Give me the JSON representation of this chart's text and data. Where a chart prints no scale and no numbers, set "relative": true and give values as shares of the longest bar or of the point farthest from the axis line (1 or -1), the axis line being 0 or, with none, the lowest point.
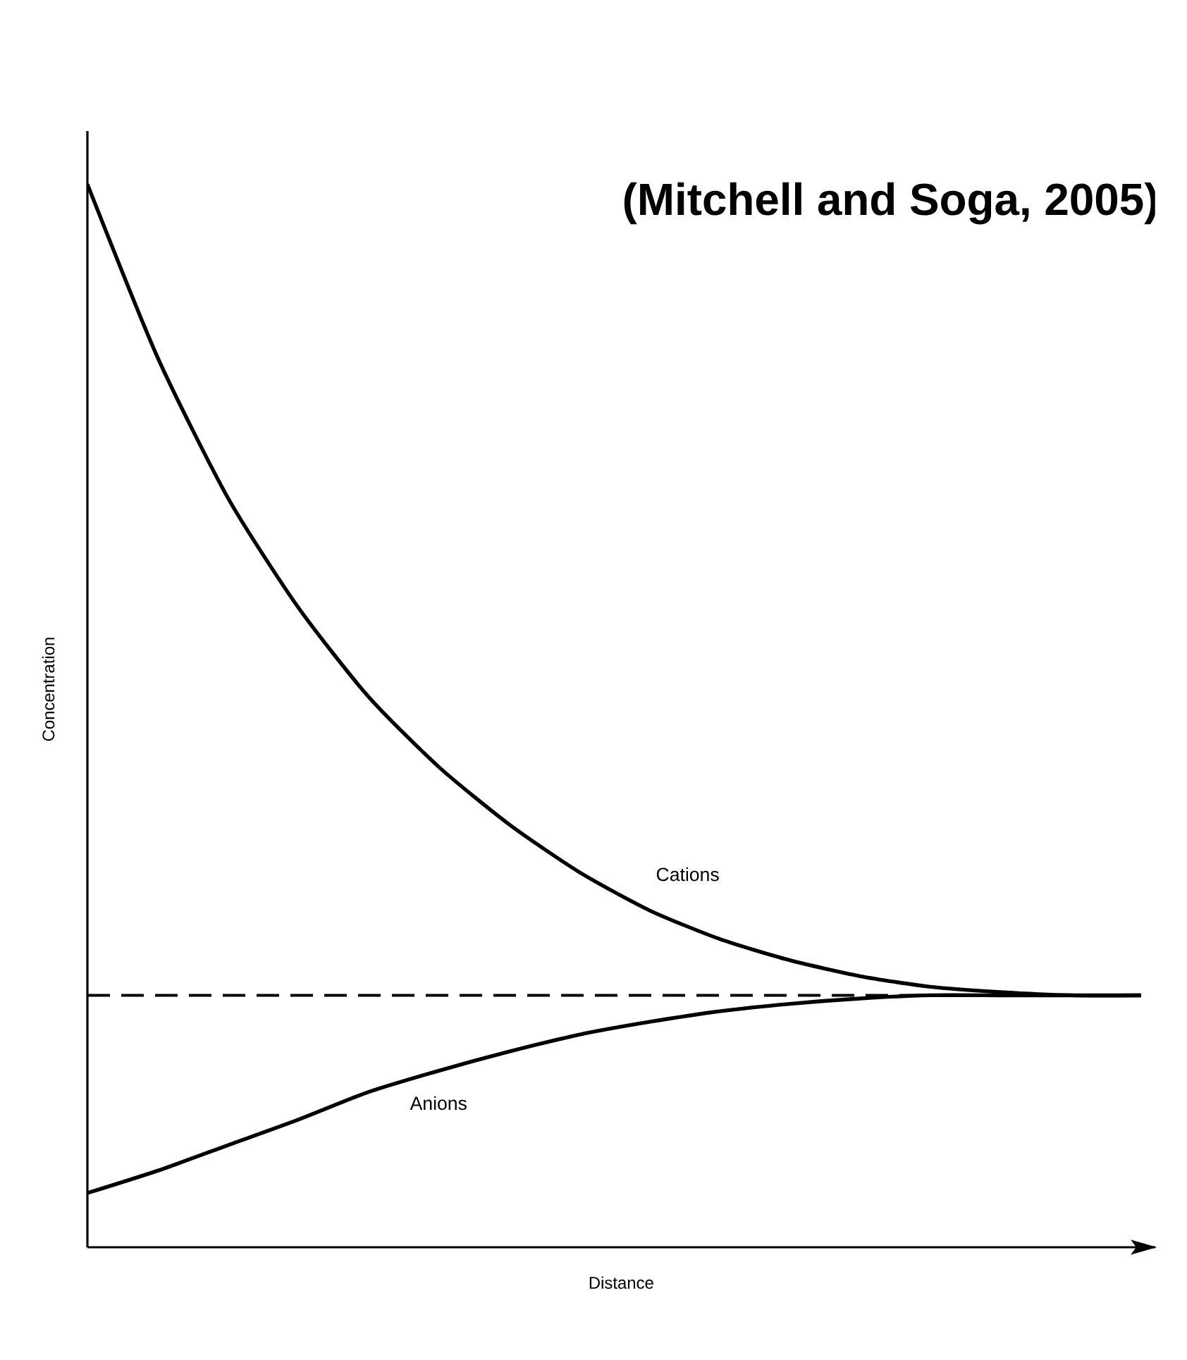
{
  "chart_data": {
    "type": "line",
    "relative": true,
    "xlabel": "Distance",
    "ylabel": "Concentration",
    "annotations": [
      "(Mitchell and Soga, 2005)"
    ],
    "categories": [
      null,
      null,
      null,
      null,
      null,
      null,
      null,
      null,
      null,
      null,
      null,
      null,
      null,
      null,
      null,
      null
    ],
    "series": [
      {
        "name": "Cations",
        "color": "#000000",
        "values": [
          1,
          0.837,
          0.705,
          0.602,
          0.518,
          0.452,
          0.398,
          0.353,
          0.317,
          0.29,
          0.27,
          0.255,
          0.245,
          0.24,
          0.237,
          0.237
        ]
      },
      {
        "name": "Anions",
        "color": "#000000",
        "values": [
          0.051,
          0.072,
          0.096,
          0.12,
          0.146,
          0.166,
          0.184,
          0.2,
          0.212,
          0.222,
          0.229,
          0.234,
          0.237,
          0.237,
          0.237,
          0.237
        ]
      }
    ],
    "ref_lines": [
      {
        "axis": "y",
        "value": 0.237,
        "line_style": "dashed",
        "color": "#000000"
      }
    ],
    "line_style": "solid"
  }
}
